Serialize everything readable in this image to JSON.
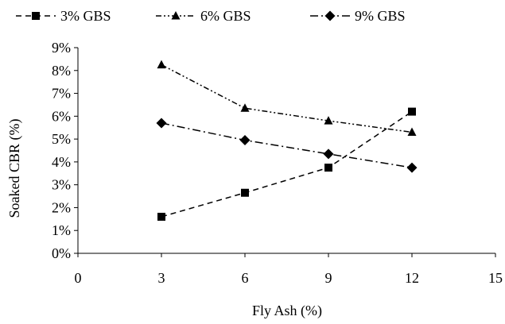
{
  "chart_data": {
    "type": "line",
    "x": [
      3,
      6,
      9,
      12
    ],
    "series": [
      {
        "name": "3% GBS",
        "values": [
          1.6,
          2.65,
          3.75,
          6.2
        ],
        "marker": "square",
        "dash": "dashed",
        "color": "#000000"
      },
      {
        "name": "6% GBS",
        "values": [
          8.25,
          6.35,
          5.8,
          5.3
        ],
        "marker": "triangle",
        "dash": "dash-dot-dot",
        "color": "#000000"
      },
      {
        "name": "9% GBS",
        "values": [
          5.7,
          4.95,
          4.35,
          3.75
        ],
        "marker": "diamond",
        "dash": "dash-dot",
        "color": "#000000"
      }
    ],
    "xlabel": "Fly Ash (%)",
    "ylabel": "Soaked CBR (%)",
    "xlim": [
      0,
      15
    ],
    "ylim": [
      0,
      9
    ],
    "x_ticks": [
      "0",
      "3",
      "6",
      "9",
      "12",
      "15"
    ],
    "y_ticks": [
      "0%",
      "1%",
      "2%",
      "3%",
      "4%",
      "5%",
      "6%",
      "7%",
      "8%",
      "9%"
    ],
    "grid": false,
    "legend_position": "top"
  }
}
